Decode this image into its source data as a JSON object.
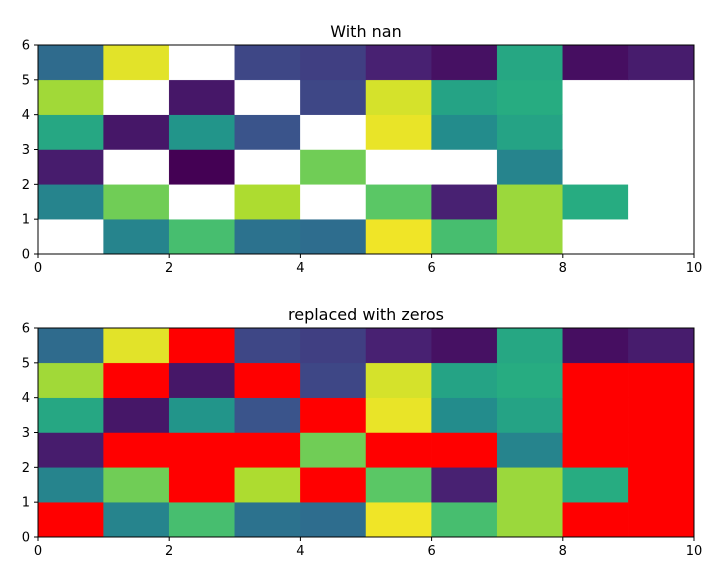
{
  "chart_data": [
    {
      "type": "heatmap",
      "title": "With nan",
      "xlim": [
        0,
        10
      ],
      "ylim": [
        0,
        6
      ],
      "xticks": [
        "0",
        "2",
        "4",
        "6",
        "8",
        "10"
      ],
      "yticks": [
        "0",
        "1",
        "2",
        "3",
        "4",
        "5",
        "6"
      ],
      "colormap": "viridis",
      "missing_color": "#ffffff",
      "grid_rows_bottom_to_top": [
        [
          null,
          0.45,
          0.7,
          0.38,
          0.36,
          0.98,
          0.7,
          0.85,
          null,
          null
        ],
        [
          0.45,
          0.78,
          null,
          0.88,
          null,
          0.74,
          0.12,
          0.85,
          0.62,
          null
        ],
        [
          0.1,
          null,
          0.0,
          null,
          0.78,
          null,
          null,
          0.45,
          null,
          null
        ],
        [
          0.6,
          0.08,
          0.52,
          0.26,
          null,
          0.97,
          0.48,
          0.58,
          null,
          null
        ],
        [
          0.86,
          null,
          0.08,
          null,
          0.22,
          0.94,
          0.58,
          0.62,
          null,
          null
        ],
        [
          0.35,
          0.96,
          null,
          0.22,
          0.2,
          0.12,
          0.06,
          0.6,
          0.05,
          0.1
        ]
      ]
    },
    {
      "type": "heatmap",
      "title": "replaced with zeros",
      "xlim": [
        0,
        10
      ],
      "ylim": [
        0,
        6
      ],
      "xticks": [
        "0",
        "2",
        "4",
        "6",
        "8",
        "10"
      ],
      "yticks": [
        "0",
        "1",
        "2",
        "3",
        "4",
        "5",
        "6"
      ],
      "colormap": "viridis",
      "zero_color": "#ff0000",
      "grid_rows_bottom_to_top": [
        [
          0,
          0.45,
          0.7,
          0.38,
          0.36,
          0.98,
          0.7,
          0.85,
          0,
          0
        ],
        [
          0.45,
          0.78,
          0,
          0.88,
          0,
          0.74,
          0.12,
          0.85,
          0.62,
          0
        ],
        [
          0.1,
          0,
          0.0,
          0,
          0.78,
          0,
          0,
          0.45,
          0,
          0
        ],
        [
          0.6,
          0.08,
          0.52,
          0.26,
          0,
          0.97,
          0.48,
          0.58,
          0,
          0
        ],
        [
          0.86,
          0,
          0.08,
          0,
          0.22,
          0.94,
          0.58,
          0.62,
          0,
          0
        ],
        [
          0.35,
          0.96,
          0,
          0.22,
          0.2,
          0.12,
          0.06,
          0.6,
          0.05,
          0.1
        ]
      ]
    }
  ]
}
